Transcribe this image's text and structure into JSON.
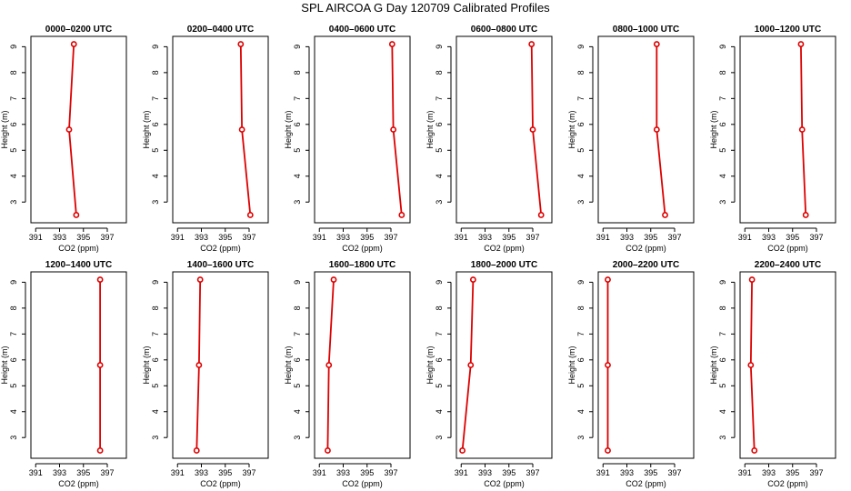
{
  "title": "SPL AIRCOA G  Day 120709  Calibrated Profiles",
  "colors": {
    "series": "#dd0000",
    "axes": "#000000",
    "background": "#ffffff"
  },
  "chart_data": [
    {
      "type": "line",
      "title": "0000–0200 UTC",
      "xlabel": "CO2 (ppm)",
      "ylabel": "Height (m)",
      "xlim": [
        390.6,
        398.6
      ],
      "ylim": [
        2.2,
        9.4
      ],
      "xticks": [
        391,
        393,
        395,
        397
      ],
      "yticks": [
        3,
        4,
        5,
        6,
        7,
        8,
        9
      ],
      "grid": false,
      "series": [
        {
          "x": [
            394.2,
            393.8,
            394.4
          ],
          "y": [
            9.1,
            5.8,
            2.5
          ]
        }
      ]
    },
    {
      "type": "line",
      "title": "0200–0400 UTC",
      "xlabel": "CO2 (ppm)",
      "ylabel": "Height (m)",
      "xlim": [
        390.6,
        398.6
      ],
      "ylim": [
        2.2,
        9.4
      ],
      "xticks": [
        391,
        393,
        395,
        397
      ],
      "yticks": [
        3,
        4,
        5,
        6,
        7,
        8,
        9
      ],
      "grid": false,
      "series": [
        {
          "x": [
            396.3,
            396.4,
            397.1
          ],
          "y": [
            9.1,
            5.8,
            2.5
          ]
        }
      ]
    },
    {
      "type": "line",
      "title": "0400–0600 UTC",
      "xlabel": "CO2 (ppm)",
      "ylabel": "Height (m)",
      "xlim": [
        390.6,
        398.6
      ],
      "ylim": [
        2.2,
        9.4
      ],
      "xticks": [
        391,
        393,
        395,
        397
      ],
      "yticks": [
        3,
        4,
        5,
        6,
        7,
        8,
        9
      ],
      "grid": false,
      "series": [
        {
          "x": [
            397.1,
            397.2,
            397.9
          ],
          "y": [
            9.1,
            5.8,
            2.5
          ]
        }
      ]
    },
    {
      "type": "line",
      "title": "0600–0800 UTC",
      "xlabel": "CO2 (ppm)",
      "ylabel": "Height (m)",
      "xlim": [
        390.6,
        398.6
      ],
      "ylim": [
        2.2,
        9.4
      ],
      "xticks": [
        391,
        393,
        395,
        397
      ],
      "yticks": [
        3,
        4,
        5,
        6,
        7,
        8,
        9
      ],
      "grid": false,
      "series": [
        {
          "x": [
            396.9,
            397.0,
            397.7
          ],
          "y": [
            9.1,
            5.8,
            2.5
          ]
        }
      ]
    },
    {
      "type": "line",
      "title": "0800–1000 UTC",
      "xlabel": "CO2 (ppm)",
      "ylabel": "Height (m)",
      "xlim": [
        390.6,
        398.6
      ],
      "ylim": [
        2.2,
        9.4
      ],
      "xticks": [
        391,
        393,
        395,
        397
      ],
      "yticks": [
        3,
        4,
        5,
        6,
        7,
        8,
        9
      ],
      "grid": false,
      "series": [
        {
          "x": [
            395.5,
            395.5,
            396.2
          ],
          "y": [
            9.1,
            5.8,
            2.5
          ]
        }
      ]
    },
    {
      "type": "line",
      "title": "1000–1200 UTC",
      "xlabel": "CO2 (ppm)",
      "ylabel": "Height (m)",
      "xlim": [
        390.6,
        398.6
      ],
      "ylim": [
        2.2,
        9.4
      ],
      "xticks": [
        391,
        393,
        395,
        397
      ],
      "yticks": [
        3,
        4,
        5,
        6,
        7,
        8,
        9
      ],
      "grid": false,
      "series": [
        {
          "x": [
            395.7,
            395.8,
            396.1
          ],
          "y": [
            9.1,
            5.8,
            2.5
          ]
        }
      ]
    },
    {
      "type": "line",
      "title": "1200–1400 UTC",
      "xlabel": "CO2 (ppm)",
      "ylabel": "Height (m)",
      "xlim": [
        390.6,
        398.6
      ],
      "ylim": [
        2.2,
        9.4
      ],
      "xticks": [
        391,
        393,
        395,
        397
      ],
      "yticks": [
        3,
        4,
        5,
        6,
        7,
        8,
        9
      ],
      "grid": false,
      "series": [
        {
          "x": [
            396.4,
            396.4,
            396.4
          ],
          "y": [
            9.1,
            5.8,
            2.5
          ]
        }
      ]
    },
    {
      "type": "line",
      "title": "1400–1600 UTC",
      "xlabel": "CO2 (ppm)",
      "ylabel": "Height (m)",
      "xlim": [
        390.6,
        398.6
      ],
      "ylim": [
        2.2,
        9.4
      ],
      "xticks": [
        391,
        393,
        395,
        397
      ],
      "yticks": [
        3,
        4,
        5,
        6,
        7,
        8,
        9
      ],
      "grid": false,
      "series": [
        {
          "x": [
            392.9,
            392.8,
            392.6
          ],
          "y": [
            9.1,
            5.8,
            2.5
          ]
        }
      ]
    },
    {
      "type": "line",
      "title": "1600–1800 UTC",
      "xlabel": "CO2 (ppm)",
      "ylabel": "Height (m)",
      "xlim": [
        390.6,
        398.6
      ],
      "ylim": [
        2.2,
        9.4
      ],
      "xticks": [
        391,
        393,
        395,
        397
      ],
      "yticks": [
        3,
        4,
        5,
        6,
        7,
        8,
        9
      ],
      "grid": false,
      "series": [
        {
          "x": [
            392.2,
            391.8,
            391.7
          ],
          "y": [
            9.1,
            5.8,
            2.5
          ]
        }
      ]
    },
    {
      "type": "line",
      "title": "1800–2000 UTC",
      "xlabel": "CO2 (ppm)",
      "ylabel": "Height (m)",
      "xlim": [
        390.6,
        398.6
      ],
      "ylim": [
        2.2,
        9.4
      ],
      "xticks": [
        391,
        393,
        395,
        397
      ],
      "yticks": [
        3,
        4,
        5,
        6,
        7,
        8,
        9
      ],
      "grid": false,
      "series": [
        {
          "x": [
            392.0,
            391.8,
            391.1
          ],
          "y": [
            9.1,
            5.8,
            2.5
          ]
        }
      ]
    },
    {
      "type": "line",
      "title": "2000–2200 UTC",
      "xlabel": "CO2 (ppm)",
      "ylabel": "Height (m)",
      "xlim": [
        390.6,
        398.6
      ],
      "ylim": [
        2.2,
        9.4
      ],
      "xticks": [
        391,
        393,
        395,
        397
      ],
      "yticks": [
        3,
        4,
        5,
        6,
        7,
        8,
        9
      ],
      "grid": false,
      "series": [
        {
          "x": [
            391.4,
            391.4,
            391.4
          ],
          "y": [
            9.1,
            5.8,
            2.5
          ]
        }
      ]
    },
    {
      "type": "line",
      "title": "2200–2400 UTC",
      "xlabel": "CO2 (ppm)",
      "ylabel": "Height (m)",
      "xlim": [
        390.6,
        398.6
      ],
      "ylim": [
        2.2,
        9.4
      ],
      "xticks": [
        391,
        393,
        395,
        397
      ],
      "yticks": [
        3,
        4,
        5,
        6,
        7,
        8,
        9
      ],
      "grid": false,
      "series": [
        {
          "x": [
            391.6,
            391.5,
            391.8
          ],
          "y": [
            9.1,
            5.8,
            2.5
          ]
        }
      ]
    }
  ]
}
